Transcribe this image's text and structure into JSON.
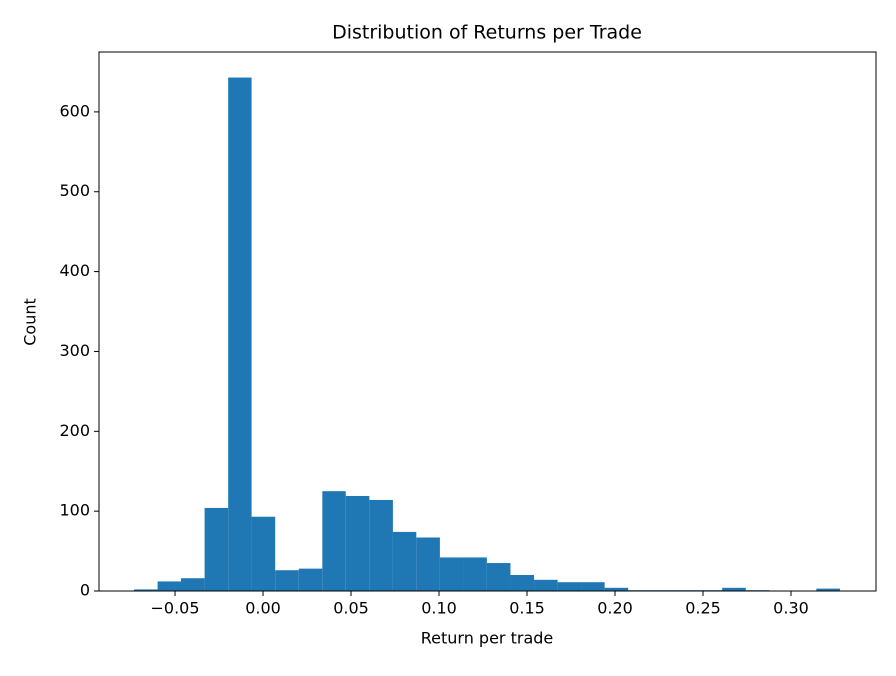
{
  "chart_data": {
    "type": "histogram",
    "title": "Distribution of Returns per Trade",
    "x_label": "Return per trade",
    "y_label": "Count",
    "color": "#1f77b4",
    "bins": [
      -0.0733,
      -0.0599,
      -0.0466,
      -0.0332,
      -0.0198,
      -0.0065,
      0.0069,
      0.0203,
      0.0337,
      0.047,
      0.0604,
      0.0738,
      0.0871,
      0.1005,
      0.1139,
      0.1272,
      0.1406,
      0.154,
      0.1674,
      0.1807,
      0.1941,
      0.2075,
      0.2208,
      0.2342,
      0.2476,
      0.2609,
      0.2743,
      0.2877,
      0.3011,
      0.3144,
      0.3278
    ],
    "values": [
      2,
      12,
      16,
      104,
      643,
      93,
      26,
      28,
      125,
      119,
      114,
      74,
      67,
      42,
      42,
      35,
      20,
      14,
      11,
      11,
      4,
      1,
      1,
      1,
      1,
      4,
      1,
      0,
      0,
      3
    ],
    "xlim": [
      -0.0932,
      0.3483
    ],
    "ylim": [
      0,
      675
    ],
    "xticks": [
      {
        "value": -0.05,
        "label": "−0.05"
      },
      {
        "value": 0,
        "label": "0.00"
      },
      0.05,
      {
        "value": 0.1,
        "label": "0.10"
      },
      0.15,
      {
        "value": 0.2,
        "label": "0.20"
      },
      0.25,
      {
        "value": 0.3,
        "label": "0.30"
      }
    ],
    "yticks": [
      0,
      100,
      200,
      300,
      400,
      500,
      600
    ]
  }
}
